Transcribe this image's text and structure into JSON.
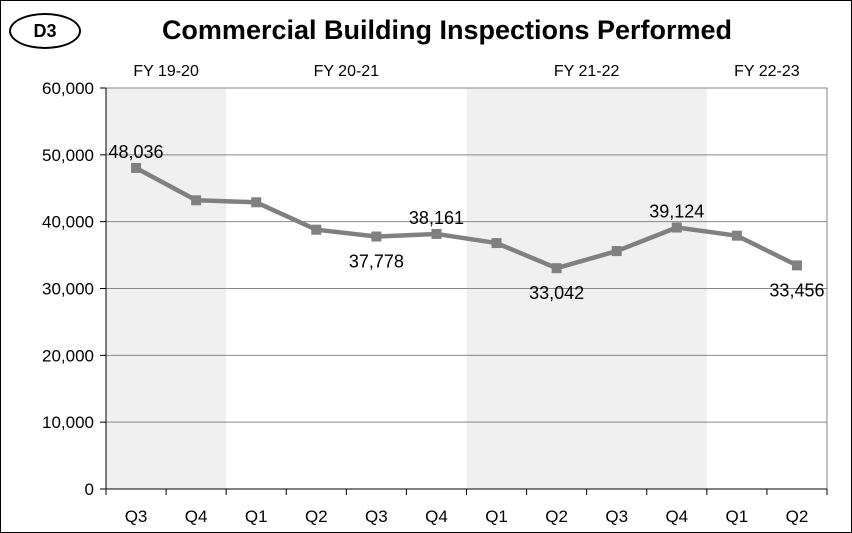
{
  "badge": "D3",
  "chart_data": {
    "type": "line",
    "title": "Commercial Building Inspections Performed",
    "categories": [
      "Q3",
      "Q4",
      "Q1",
      "Q2",
      "Q3",
      "Q4",
      "Q1",
      "Q2",
      "Q3",
      "Q4",
      "Q1",
      "Q2"
    ],
    "fiscal_years": [
      {
        "label": "FY 19-20",
        "start": 0,
        "end": 1,
        "shaded": true
      },
      {
        "label": "FY 20-21",
        "start": 2,
        "end": 5,
        "shaded": false
      },
      {
        "label": "FY 21-22",
        "start": 6,
        "end": 9,
        "shaded": true
      },
      {
        "label": "FY 22-23",
        "start": 10,
        "end": 11,
        "shaded": false
      }
    ],
    "series": [
      {
        "values": [
          48036,
          43200,
          42900,
          38800,
          37778,
          38161,
          36800,
          33042,
          35600,
          39124,
          37900,
          33456
        ],
        "color": "#808080"
      }
    ],
    "data_labels": [
      {
        "index": 0,
        "text": "48,036",
        "pos": "above"
      },
      {
        "index": 4,
        "text": "37,778",
        "pos": "below"
      },
      {
        "index": 5,
        "text": "38,161",
        "pos": "above"
      },
      {
        "index": 7,
        "text": "33,042",
        "pos": "below"
      },
      {
        "index": 9,
        "text": "39,124",
        "pos": "above"
      },
      {
        "index": 11,
        "text": "33,456",
        "pos": "below"
      }
    ],
    "ylim": [
      0,
      60000
    ],
    "yticks": [
      0,
      10000,
      20000,
      30000,
      40000,
      50000,
      60000
    ],
    "ytick_labels": [
      "0",
      "10,000",
      "20,000",
      "30,000",
      "40,000",
      "50,000",
      "60,000"
    ],
    "grid": true,
    "xlabel": "",
    "ylabel": "",
    "colors": {
      "shade": "#f0f0f0",
      "grid": "#878787",
      "line": "#808080"
    }
  }
}
